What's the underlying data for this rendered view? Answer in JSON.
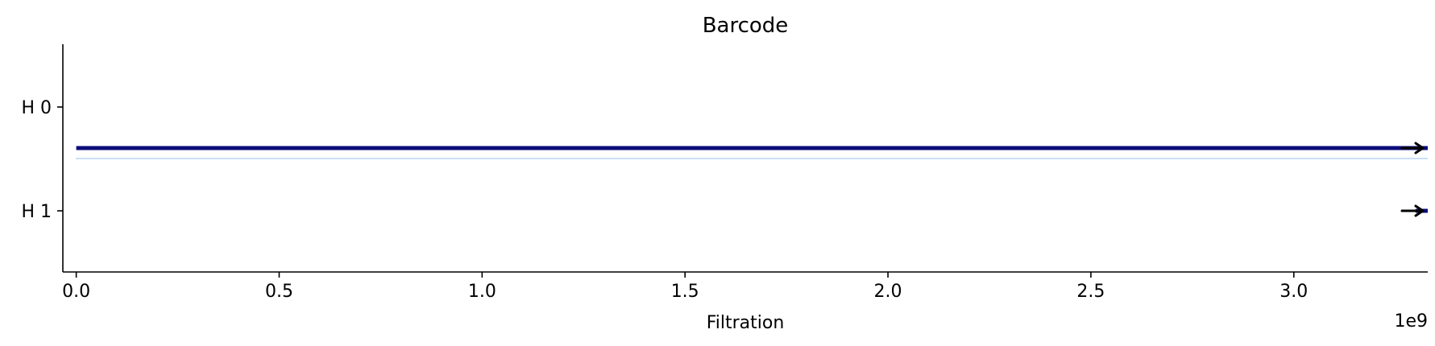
{
  "chart_data": {
    "type": "barcode",
    "title": "Barcode",
    "xlabel": "Filtration",
    "x_offset_label": "1e9",
    "xlim": [
      -0.033,
      3.33
    ],
    "x_ticks": [
      0.0,
      0.5,
      1.0,
      1.5,
      2.0,
      2.5,
      3.0
    ],
    "x_tick_labels": [
      "0.0",
      "0.5",
      "1.0",
      "1.5",
      "2.0",
      "2.5",
      "3.0"
    ],
    "y_tick_labels": [
      "H 0",
      "H 1"
    ],
    "bars": [
      {
        "dimension": "H 0",
        "birth": 0.0,
        "death": "inf"
      },
      {
        "dimension": "H 1",
        "birth": 3.3,
        "death": "inf"
      }
    ],
    "colors": {
      "bar": "#0c0c7a",
      "arrow": "#000000",
      "separator": "#a8cdf0",
      "axis": "#000000"
    }
  }
}
